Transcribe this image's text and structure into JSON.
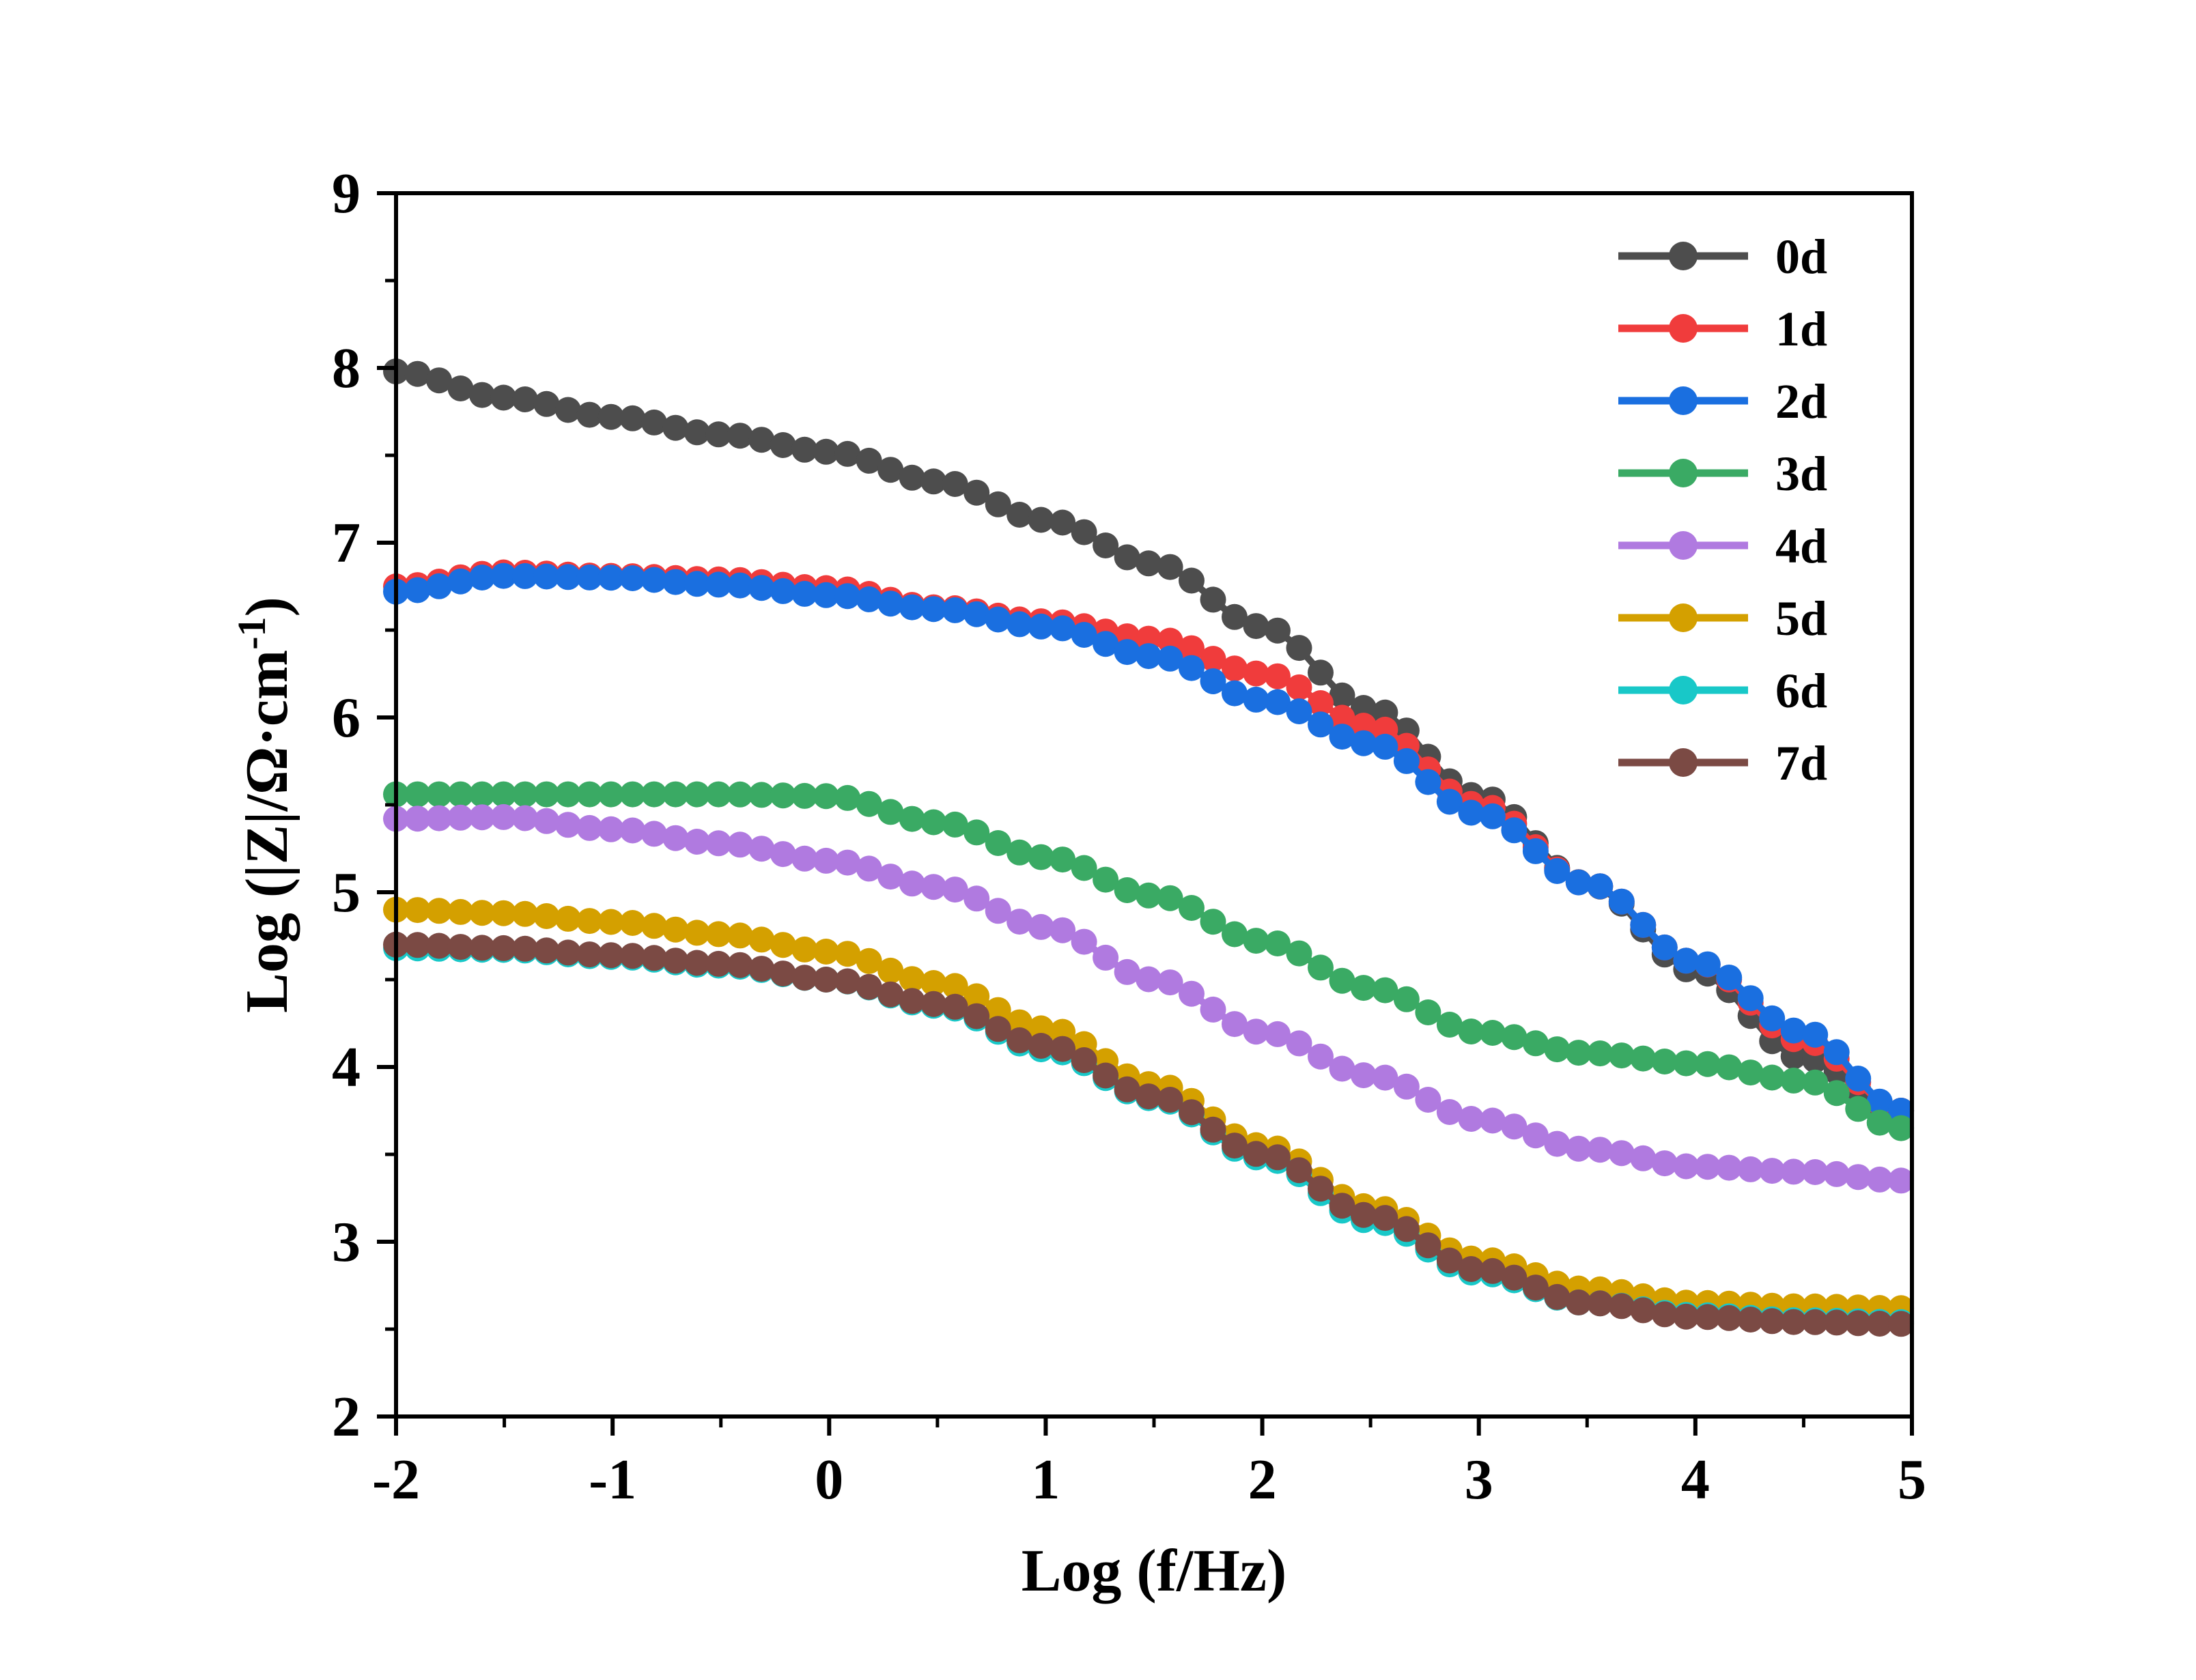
{
  "chart_data": {
    "type": "scatter",
    "title": "",
    "xlabel": "Log (f/Hz)",
    "ylabel_parts": {
      "main": "Log (|Z|/Ω·cm",
      "sup": "-1",
      "end": ")"
    },
    "xlim": [
      -2,
      5
    ],
    "ylim": [
      2,
      9
    ],
    "xticks": [
      "-2",
      "-1",
      "0",
      "1",
      "2",
      "3",
      "4",
      "5"
    ],
    "yticks": [
      "2",
      "3",
      "4",
      "5",
      "6",
      "7",
      "8",
      "9"
    ],
    "legend_position": "top-right",
    "grid": false,
    "series": [
      {
        "name": "0d",
        "color": "#4d4d4d",
        "x": [
          -2,
          -1.5,
          -1,
          -0.5,
          0,
          0.5,
          1,
          1.5,
          2,
          2.5,
          3,
          3.5,
          4,
          4.5,
          4.95
        ],
        "y": [
          7.98,
          7.83,
          7.72,
          7.62,
          7.52,
          7.35,
          7.13,
          6.88,
          6.52,
          6.05,
          5.55,
          5.05,
          4.55,
          4.05,
          3.75
        ]
      },
      {
        "name": "1d",
        "color": "#f03c3c",
        "x": [
          -2,
          -1.5,
          -1,
          -0.5,
          0,
          0.5,
          1,
          1.5,
          2,
          2.5,
          3,
          3.5,
          4,
          4.5,
          4.95
        ],
        "y": [
          6.75,
          6.83,
          6.81,
          6.79,
          6.74,
          6.63,
          6.55,
          6.45,
          6.25,
          5.95,
          5.5,
          5.05,
          4.6,
          4.15,
          3.75
        ]
      },
      {
        "name": "2d",
        "color": "#1a6fe0",
        "x": [
          -2,
          -1.5,
          -1,
          -0.5,
          0,
          0.5,
          1,
          1.5,
          2,
          2.5,
          3,
          3.5,
          4,
          4.5,
          4.95
        ],
        "y": [
          6.72,
          6.81,
          6.8,
          6.76,
          6.7,
          6.62,
          6.52,
          6.35,
          6.1,
          5.85,
          5.45,
          5.05,
          4.6,
          4.2,
          3.75
        ]
      },
      {
        "name": "3d",
        "color": "#3aaa64",
        "x": [
          -2,
          -1.5,
          -1,
          -0.5,
          0,
          0.5,
          1,
          1.5,
          2,
          2.5,
          3,
          3.5,
          4,
          4.5,
          4.95
        ],
        "y": [
          5.56,
          5.56,
          5.56,
          5.56,
          5.55,
          5.4,
          5.2,
          4.98,
          4.72,
          4.45,
          4.2,
          4.08,
          4.02,
          3.92,
          3.65
        ]
      },
      {
        "name": "4d",
        "color": "#b07ae0",
        "x": [
          -2,
          -1.5,
          -1,
          -0.5,
          0,
          0.5,
          1,
          1.5,
          2,
          2.5,
          3,
          3.5,
          4,
          4.5,
          4.95
        ],
        "y": [
          5.42,
          5.43,
          5.36,
          5.28,
          5.18,
          5.03,
          4.8,
          4.5,
          4.2,
          3.95,
          3.7,
          3.53,
          3.43,
          3.4,
          3.35
        ]
      },
      {
        "name": "5d",
        "color": "#d4a000",
        "x": [
          -2,
          -1.5,
          -1,
          -0.5,
          0,
          0.5,
          1,
          1.5,
          2,
          2.5,
          3,
          3.5,
          4,
          4.5,
          4.95
        ],
        "y": [
          4.9,
          4.88,
          4.83,
          4.76,
          4.66,
          4.48,
          4.22,
          3.9,
          3.55,
          3.2,
          2.9,
          2.73,
          2.65,
          2.63,
          2.62
        ]
      },
      {
        "name": "6d",
        "color": "#18c8c8",
        "x": [
          -2,
          -1.5,
          -1,
          -0.5,
          0,
          0.5,
          1,
          1.5,
          2,
          2.5,
          3,
          3.5,
          4,
          4.5,
          4.95
        ],
        "y": [
          4.68,
          4.67,
          4.63,
          4.58,
          4.5,
          4.35,
          4.1,
          3.82,
          3.48,
          3.12,
          2.82,
          2.65,
          2.58,
          2.55,
          2.54
        ]
      },
      {
        "name": "7d",
        "color": "#7b4a44",
        "x": [
          -2,
          -1.5,
          -1,
          -0.5,
          0,
          0.5,
          1,
          1.5,
          2,
          2.5,
          3,
          3.5,
          4,
          4.5,
          4.95
        ],
        "y": [
          4.7,
          4.68,
          4.64,
          4.59,
          4.5,
          4.36,
          4.12,
          3.83,
          3.5,
          3.15,
          2.84,
          2.65,
          2.57,
          2.54,
          2.53
        ]
      }
    ]
  }
}
